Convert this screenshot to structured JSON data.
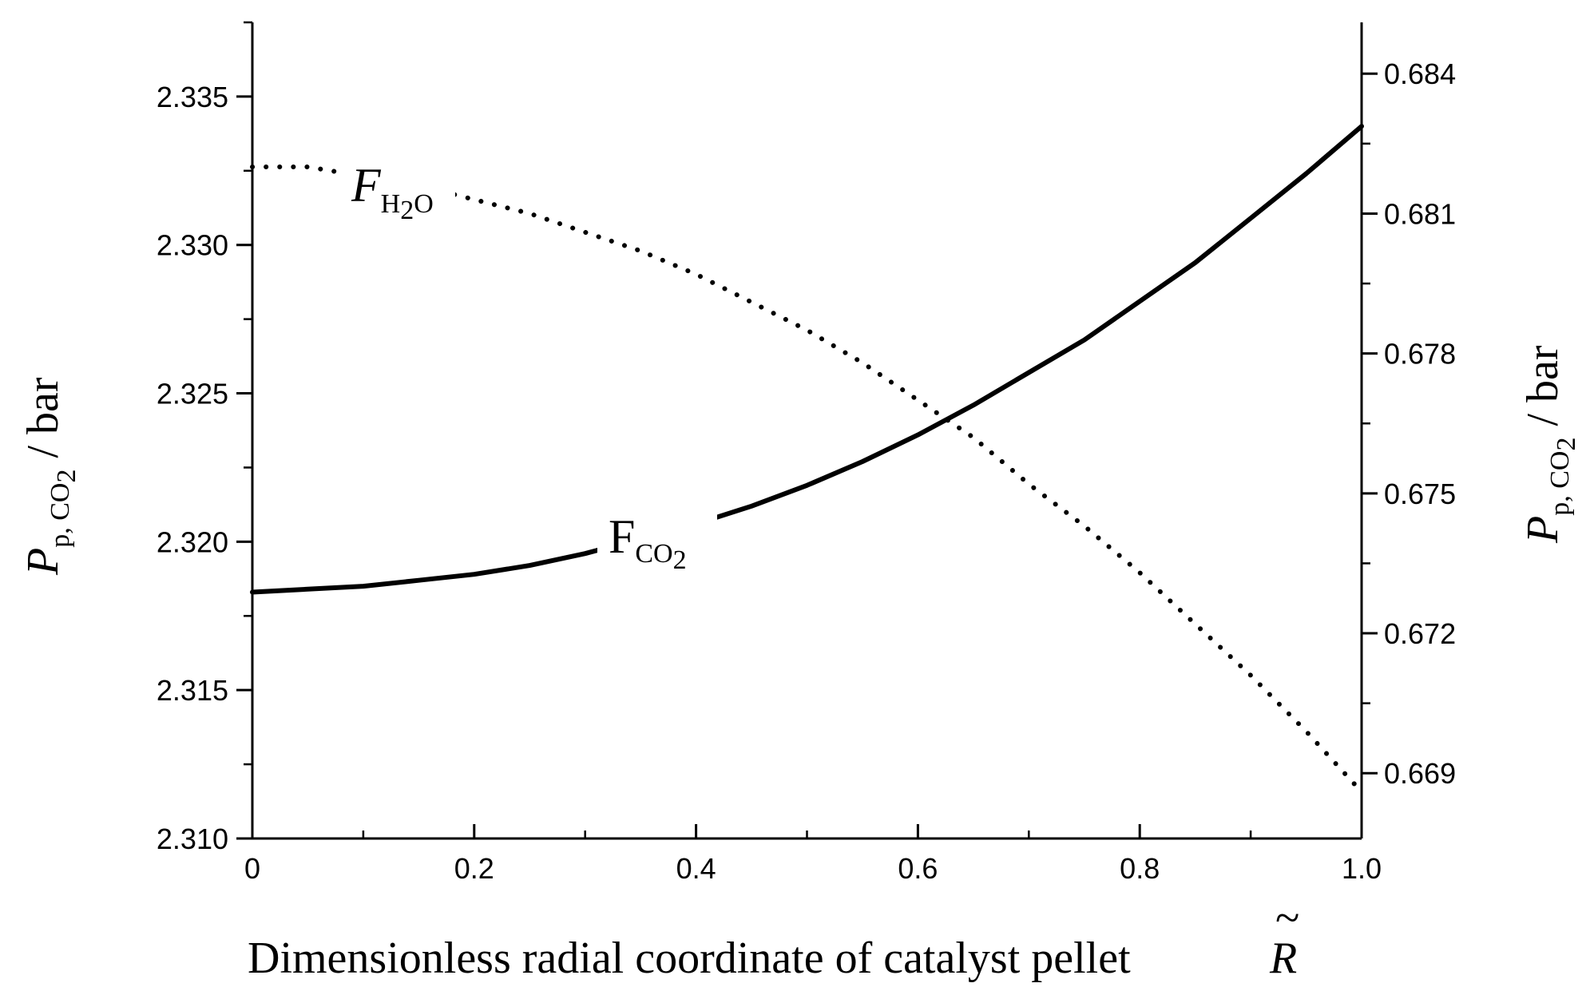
{
  "chart_data": {
    "type": "line",
    "xlabel": "Dimensionless radial coordinate of catalyst pellet",
    "xlabel_symbol": "R",
    "xlabel_symbol_accent": "~",
    "ylabel_left": {
      "main": "P",
      "sub": "p, CO",
      "sub2": "2",
      "unit": " / bar"
    },
    "ylabel_right": {
      "main": "P",
      "sub": "p, CO",
      "sub2": "2",
      "unit": " / bar"
    },
    "xlim": [
      0,
      1.0
    ],
    "ylim_left": [
      2.31,
      2.3375
    ],
    "ylim_right": [
      0.6676,
      0.6851
    ],
    "x_ticks": [
      0,
      0.2,
      0.4,
      0.6,
      0.8,
      1.0
    ],
    "x_tick_labels": [
      "0",
      "0.2",
      "0.4",
      "0.6",
      "0.8",
      "1.0"
    ],
    "y_left_ticks": [
      2.31,
      2.315,
      2.32,
      2.325,
      2.33,
      2.335
    ],
    "y_left_tick_labels": [
      "2.310",
      "2.315",
      "2.320",
      "2.325",
      "2.330",
      "2.335"
    ],
    "y_right_ticks": [
      0.669,
      0.672,
      0.675,
      0.678,
      0.681,
      0.684
    ],
    "y_right_tick_labels": [
      "0.669",
      "0.672",
      "0.675",
      "0.678",
      "0.681",
      "0.684"
    ],
    "grid": false,
    "legend": "none",
    "series": [
      {
        "label_main": "F",
        "label_sub": "CO",
        "label_sub2": "2",
        "axis": "left",
        "style": "solid",
        "x": [
          0,
          0.05,
          0.1,
          0.15,
          0.2,
          0.25,
          0.3,
          0.35,
          0.4,
          0.45,
          0.5,
          0.55,
          0.6,
          0.65,
          0.7,
          0.75,
          0.8,
          0.85,
          0.9,
          0.95,
          1.0
        ],
        "y": [
          2.3183,
          2.3184,
          2.3185,
          2.3187,
          2.3189,
          2.3192,
          2.3196,
          2.3201,
          2.3206,
          2.3212,
          2.3219,
          2.3227,
          2.3236,
          2.3246,
          2.3257,
          2.3268,
          2.3281,
          2.3294,
          2.3309,
          2.3324,
          2.334
        ]
      },
      {
        "label_main": "F",
        "label_sub": "H",
        "label_sub2": "2",
        "label_sub3": "O",
        "axis": "right",
        "style": "dotted",
        "x": [
          0,
          0.05,
          0.1,
          0.15,
          0.2,
          0.25,
          0.3,
          0.35,
          0.4,
          0.45,
          0.5,
          0.55,
          0.6,
          0.65,
          0.7,
          0.75,
          0.8,
          0.85,
          0.9,
          0.95,
          1.0
        ],
        "y": [
          0.682,
          0.682,
          0.6818,
          0.6816,
          0.6813,
          0.681,
          0.6806,
          0.6802,
          0.6797,
          0.6791,
          0.6785,
          0.6778,
          0.677,
          0.6762,
          0.6752,
          0.6743,
          0.6733,
          0.6722,
          0.6711,
          0.6699,
          0.6686
        ]
      }
    ]
  }
}
